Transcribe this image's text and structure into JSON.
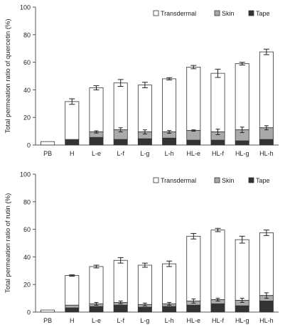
{
  "chart_data": [
    {
      "type": "bar",
      "stacked": true,
      "ylabel": "Total permeation ratio of quercetin (%)",
      "ylim": [
        0,
        100
      ],
      "yticks": [
        "0",
        "20",
        "40",
        "60",
        "80",
        "100"
      ],
      "categories": [
        "PB",
        "H",
        "L-e",
        "L-f",
        "L-g",
        "L-h",
        "HL-e",
        "HL-f",
        "HL-g",
        "HL-h"
      ],
      "legend_position": "top-right",
      "series": [
        {
          "name": "Tape",
          "values": [
            0,
            3.5,
            5.5,
            4,
            4.5,
            5,
            3.5,
            3.5,
            3,
            4
          ]
        },
        {
          "name": "Skin",
          "values": [
            0,
            0.5,
            4,
            7,
            5,
            4.5,
            7,
            6,
            8,
            8.5
          ]
        },
        {
          "name": "Transdermal",
          "values": [
            2.5,
            27.5,
            32,
            34,
            34,
            38.5,
            46,
            42.5,
            48,
            55
          ]
        }
      ],
      "transdermal_error": [
        0,
        2,
        1.5,
        2.5,
        2,
        0.8,
        1.2,
        3,
        1,
        2
      ],
      "skin_error": [
        0,
        0,
        0.8,
        1.5,
        1.5,
        1,
        0.5,
        2,
        2,
        1.5
      ],
      "colors": {
        "Tape": "#333333",
        "Skin": "#aaaaaa",
        "Transdermal": "#ffffff"
      }
    },
    {
      "type": "bar",
      "stacked": true,
      "ylabel": "Total permeation ratio of rutin (%)",
      "ylim": [
        0,
        100
      ],
      "yticks": [
        "0",
        "20",
        "40",
        "60",
        "80",
        "100"
      ],
      "categories": [
        "PB",
        "H",
        "L-e",
        "L-f",
        "L-g",
        "L-h",
        "HL-e",
        "HL-f",
        "HL-g",
        "HL-h"
      ],
      "legend_position": "top-right",
      "series": [
        {
          "name": "Tape",
          "values": [
            0,
            3,
            4,
            5,
            3.5,
            4,
            5,
            6,
            4.5,
            8
          ]
        },
        {
          "name": "Skin",
          "values": [
            0,
            2,
            2,
            2,
            2,
            2,
            3,
            3,
            4,
            4
          ]
        },
        {
          "name": "Transdermal",
          "values": [
            1.5,
            21.5,
            27,
            30.5,
            28.5,
            29,
            47,
            50.5,
            44,
            45.5
          ]
        }
      ],
      "transdermal_error": [
        0,
        0.5,
        1,
        2,
        1.5,
        2,
        2,
        1.2,
        2.5,
        2
      ],
      "skin_error": [
        0,
        0,
        1,
        1,
        1,
        1,
        1.5,
        1,
        1.5,
        2
      ],
      "colors": {
        "Tape": "#333333",
        "Skin": "#aaaaaa",
        "Transdermal": "#ffffff"
      }
    }
  ]
}
